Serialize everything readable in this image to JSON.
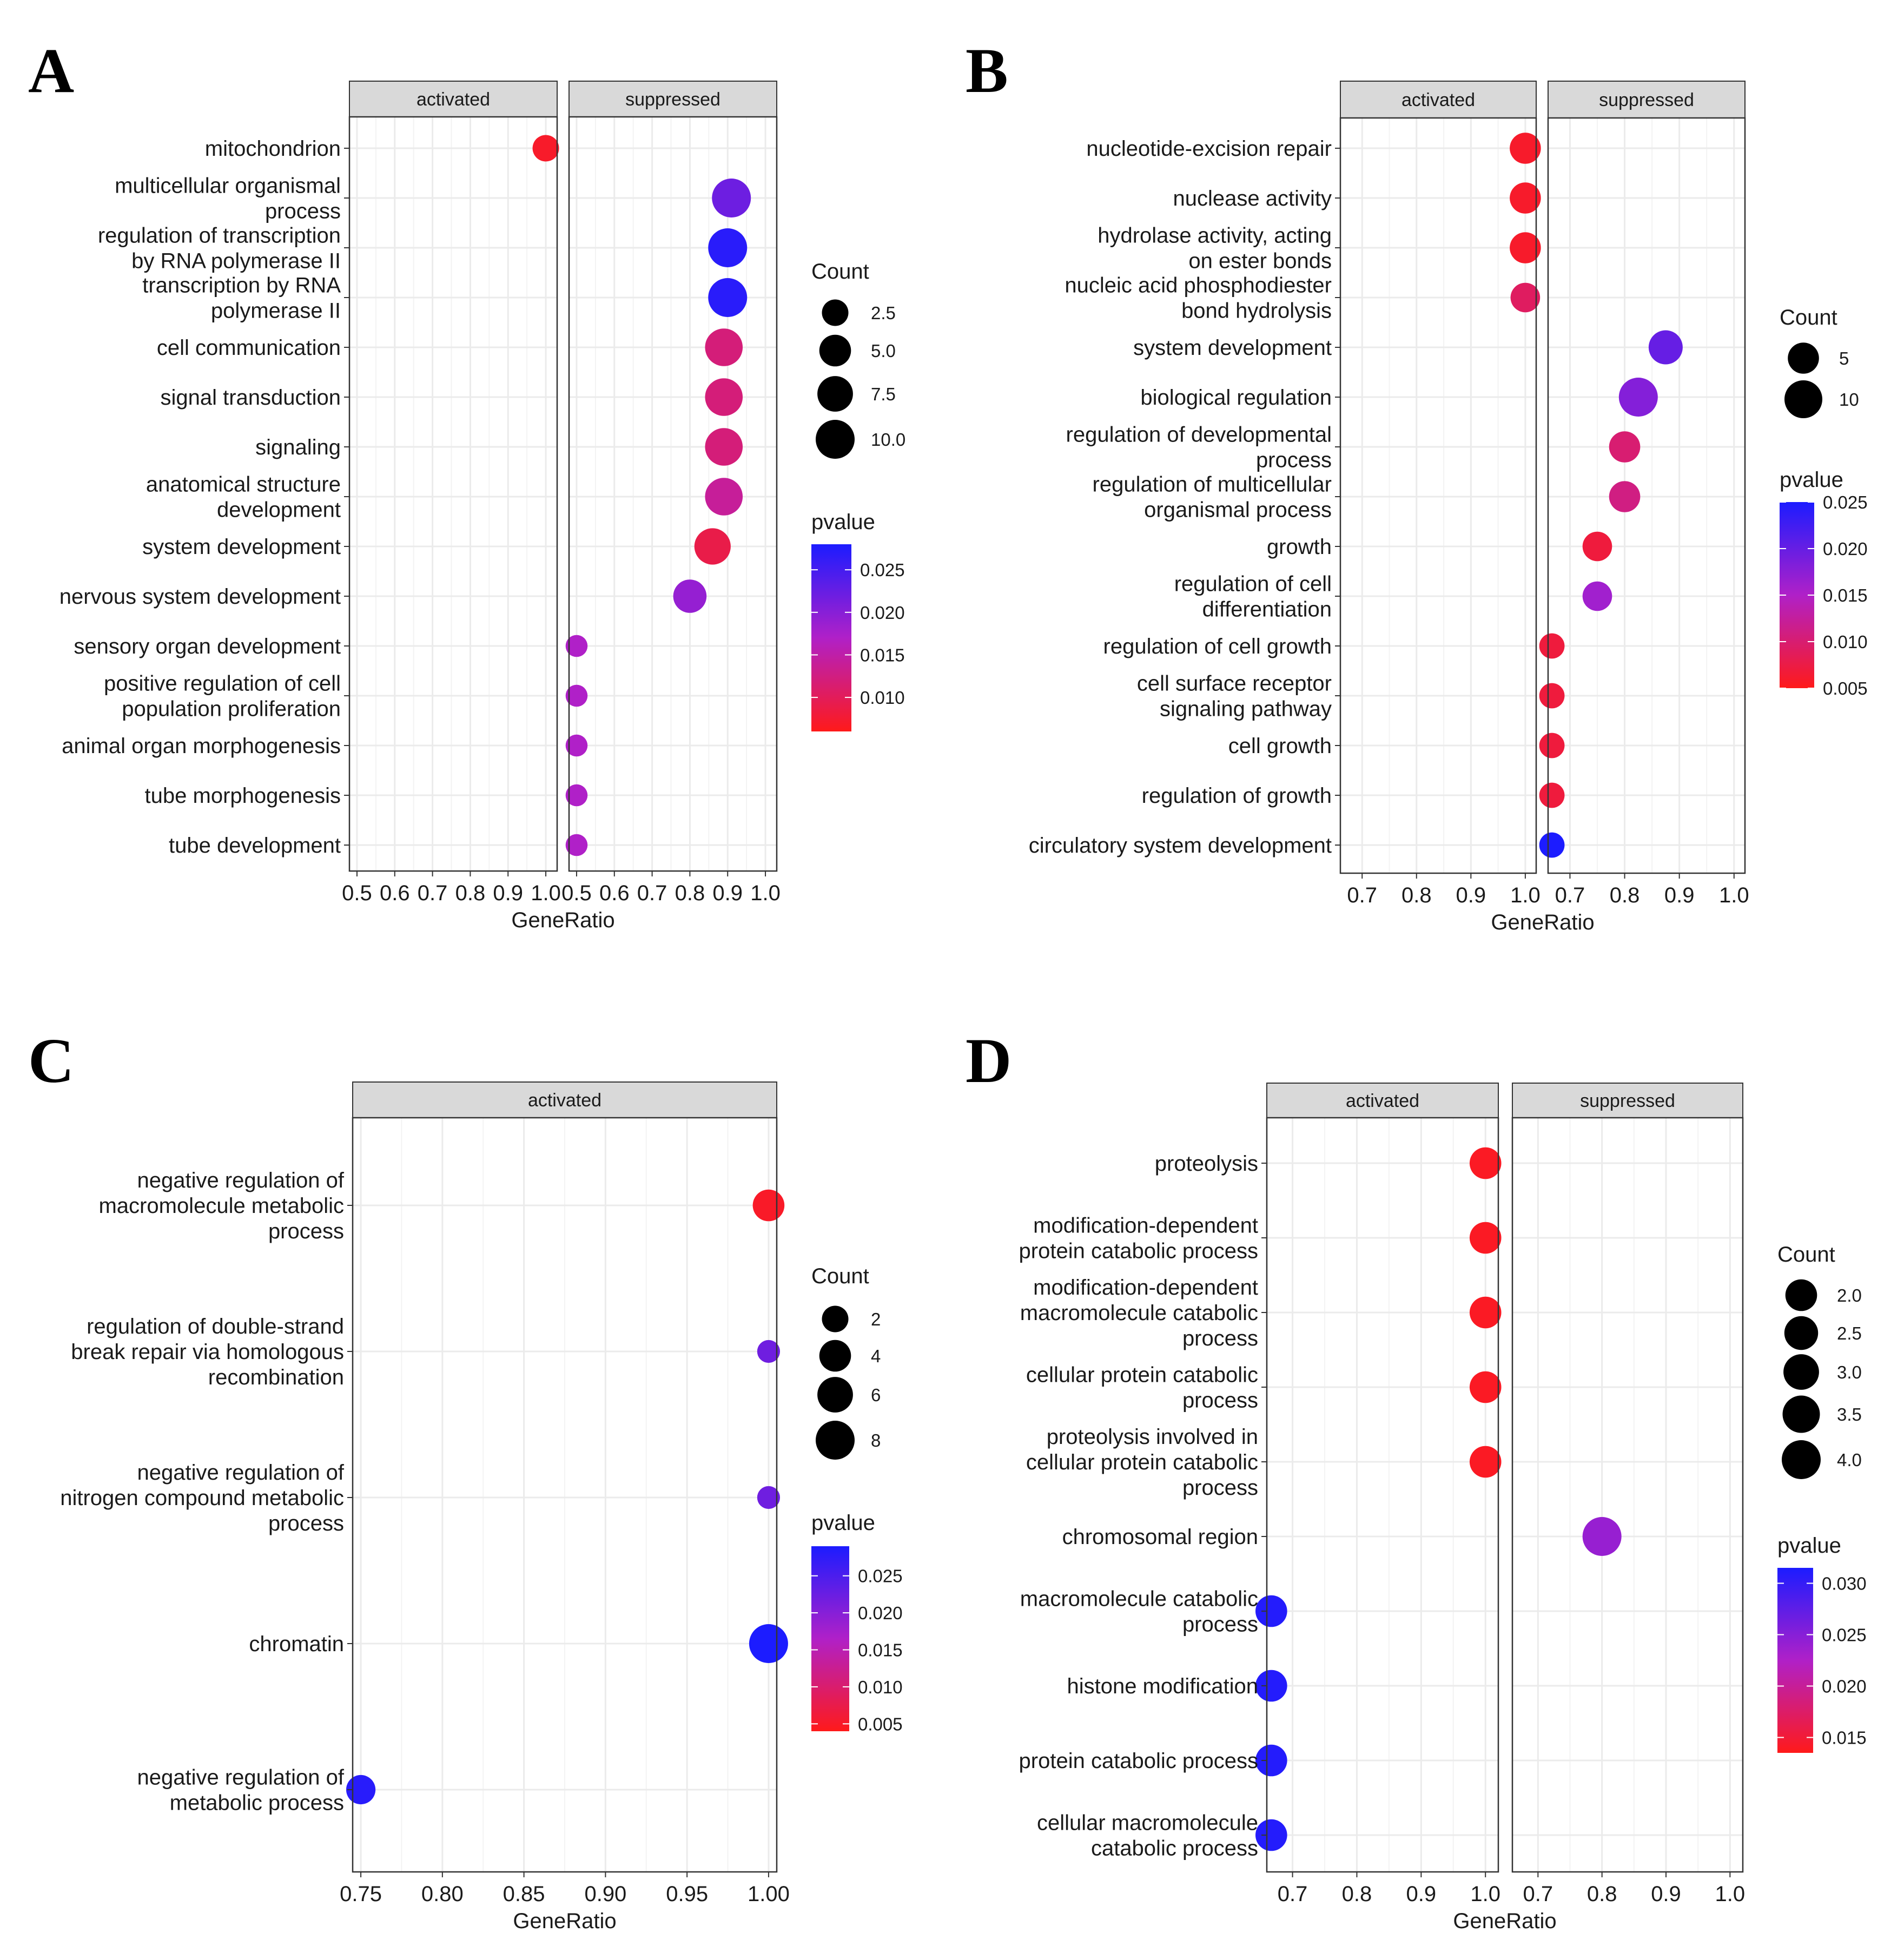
{
  "figure": {
    "colors": {
      "low_p": "#ff1a1a",
      "mid_p": "#b020c8",
      "high_p": "#1c1cff",
      "strip_fill": "#d9d9d9",
      "grid": "#ebebeb"
    }
  },
  "chart_data": [
    {
      "letter": "A",
      "type": "scatter",
      "facets": [
        "activated",
        "suppressed"
      ],
      "xlabel": "GeneRatio",
      "xlim": [
        0.48,
        1.03
      ],
      "xticks": [
        0.5,
        0.6,
        0.7,
        0.8,
        0.9,
        1.0
      ],
      "xtick_labels": [
        "0.5",
        "0.6",
        "0.7",
        "0.8",
        "0.9",
        "1.0"
      ],
      "terms": [
        {
          "lines": [
            "mitochondrion"
          ]
        },
        {
          "lines": [
            "multicellular organismal",
            "process"
          ]
        },
        {
          "lines": [
            "regulation of transcription",
            "by RNA polymerase II"
          ]
        },
        {
          "lines": [
            "transcription by RNA",
            "polymerase II"
          ]
        },
        {
          "lines": [
            "cell communication"
          ]
        },
        {
          "lines": [
            "signal transduction"
          ]
        },
        {
          "lines": [
            "signaling"
          ]
        },
        {
          "lines": [
            "anatomical structure",
            "development"
          ]
        },
        {
          "lines": [
            "system development"
          ]
        },
        {
          "lines": [
            "nervous system development"
          ]
        },
        {
          "lines": [
            "sensory organ development"
          ]
        },
        {
          "lines": [
            "positive regulation of cell",
            "population proliferation"
          ]
        },
        {
          "lines": [
            "animal organ morphogenesis"
          ]
        },
        {
          "lines": [
            "tube morphogenesis"
          ]
        },
        {
          "lines": [
            "tube development"
          ]
        }
      ],
      "points": [
        {
          "term": 0,
          "facet": 0,
          "gene_ratio": 1.0,
          "count": 2.5,
          "pvalue": 0.007
        },
        {
          "term": 1,
          "facet": 1,
          "gene_ratio": 0.91,
          "count": 10,
          "pvalue": 0.022
        },
        {
          "term": 2,
          "facet": 1,
          "gene_ratio": 0.9,
          "count": 10,
          "pvalue": 0.027
        },
        {
          "term": 3,
          "facet": 1,
          "gene_ratio": 0.9,
          "count": 10,
          "pvalue": 0.027
        },
        {
          "term": 4,
          "facet": 1,
          "gene_ratio": 0.89,
          "count": 9,
          "pvalue": 0.012
        },
        {
          "term": 5,
          "facet": 1,
          "gene_ratio": 0.89,
          "count": 9,
          "pvalue": 0.012
        },
        {
          "term": 6,
          "facet": 1,
          "gene_ratio": 0.89,
          "count": 9,
          "pvalue": 0.012
        },
        {
          "term": 7,
          "facet": 1,
          "gene_ratio": 0.89,
          "count": 9,
          "pvalue": 0.014
        },
        {
          "term": 8,
          "facet": 1,
          "gene_ratio": 0.86,
          "count": 8,
          "pvalue": 0.009
        },
        {
          "term": 9,
          "facet": 1,
          "gene_ratio": 0.8,
          "count": 6,
          "pvalue": 0.019
        },
        {
          "term": 10,
          "facet": 1,
          "gene_ratio": 0.5,
          "count": 1,
          "pvalue": 0.017
        },
        {
          "term": 11,
          "facet": 1,
          "gene_ratio": 0.5,
          "count": 1,
          "pvalue": 0.017
        },
        {
          "term": 12,
          "facet": 1,
          "gene_ratio": 0.5,
          "count": 1,
          "pvalue": 0.017
        },
        {
          "term": 13,
          "facet": 1,
          "gene_ratio": 0.5,
          "count": 1,
          "pvalue": 0.017
        },
        {
          "term": 14,
          "facet": 1,
          "gene_ratio": 0.5,
          "count": 1,
          "pvalue": 0.017
        }
      ],
      "count_legend": {
        "title": "Count",
        "values": [
          2.5,
          5.0,
          7.5,
          10.0
        ],
        "labels": [
          "2.5",
          "5.0",
          "7.5",
          "10.0"
        ],
        "max": 10
      },
      "pvalue_legend": {
        "title": "pvalue",
        "range": [
          0.006,
          0.028
        ],
        "ticks": [
          0.025,
          0.02,
          0.015,
          0.01
        ],
        "labels": [
          "0.025",
          "0.020",
          "0.015",
          "0.010"
        ]
      }
    },
    {
      "letter": "B",
      "type": "scatter",
      "facets": [
        "activated",
        "suppressed"
      ],
      "xlabel": "GeneRatio",
      "xlim": [
        0.66,
        1.02
      ],
      "xticks": [
        0.7,
        0.8,
        0.9,
        1.0
      ],
      "xtick_labels": [
        "0.7",
        "0.8",
        "0.9",
        "1.0"
      ],
      "terms": [
        {
          "lines": [
            "nucleotide-excision repair"
          ]
        },
        {
          "lines": [
            "nuclease activity"
          ]
        },
        {
          "lines": [
            "hydrolase activity, acting",
            "on ester bonds"
          ]
        },
        {
          "lines": [
            "nucleic acid phosphodiester",
            "bond hydrolysis"
          ]
        },
        {
          "lines": [
            "system development"
          ]
        },
        {
          "lines": [
            "biological regulation"
          ]
        },
        {
          "lines": [
            "regulation of developmental",
            "process"
          ]
        },
        {
          "lines": [
            "regulation of multicellular",
            "organismal process"
          ]
        },
        {
          "lines": [
            "growth"
          ]
        },
        {
          "lines": [
            "regulation of cell",
            "differentiation"
          ]
        },
        {
          "lines": [
            "regulation of cell growth"
          ]
        },
        {
          "lines": [
            "cell surface receptor",
            "signaling pathway"
          ]
        },
        {
          "lines": [
            "cell growth"
          ]
        },
        {
          "lines": [
            "regulation of growth"
          ]
        },
        {
          "lines": [
            "circulatory system development"
          ]
        }
      ],
      "points": [
        {
          "term": 0,
          "facet": 0,
          "gene_ratio": 1.0,
          "count": 5,
          "pvalue": 0.006
        },
        {
          "term": 1,
          "facet": 0,
          "gene_ratio": 1.0,
          "count": 5,
          "pvalue": 0.006
        },
        {
          "term": 2,
          "facet": 0,
          "gene_ratio": 1.0,
          "count": 5,
          "pvalue": 0.006
        },
        {
          "term": 3,
          "facet": 0,
          "gene_ratio": 1.0,
          "count": 4,
          "pvalue": 0.009
        },
        {
          "term": 4,
          "facet": 1,
          "gene_ratio": 0.875,
          "count": 7,
          "pvalue": 0.02
        },
        {
          "term": 5,
          "facet": 1,
          "gene_ratio": 0.825,
          "count": 11,
          "pvalue": 0.018
        },
        {
          "term": 6,
          "facet": 1,
          "gene_ratio": 0.8,
          "count": 5,
          "pvalue": 0.01
        },
        {
          "term": 7,
          "facet": 1,
          "gene_ratio": 0.8,
          "count": 5,
          "pvalue": 0.011
        },
        {
          "term": 8,
          "facet": 1,
          "gene_ratio": 0.75,
          "count": 4,
          "pvalue": 0.007
        },
        {
          "term": 9,
          "facet": 1,
          "gene_ratio": 0.75,
          "count": 4,
          "pvalue": 0.016
        },
        {
          "term": 10,
          "facet": 1,
          "gene_ratio": 0.667,
          "count": 2,
          "pvalue": 0.007
        },
        {
          "term": 11,
          "facet": 1,
          "gene_ratio": 0.667,
          "count": 2,
          "pvalue": 0.007
        },
        {
          "term": 12,
          "facet": 1,
          "gene_ratio": 0.667,
          "count": 2,
          "pvalue": 0.007
        },
        {
          "term": 13,
          "facet": 1,
          "gene_ratio": 0.667,
          "count": 2,
          "pvalue": 0.007
        },
        {
          "term": 14,
          "facet": 1,
          "gene_ratio": 0.667,
          "count": 2,
          "pvalue": 0.025
        }
      ],
      "count_legend": {
        "title": "Count",
        "values": [
          5,
          10
        ],
        "labels": [
          "5",
          "10"
        ],
        "max": 11
      },
      "pvalue_legend": {
        "title": "pvalue",
        "range": [
          0.005,
          0.025
        ],
        "ticks": [
          0.025,
          0.02,
          0.015,
          0.01,
          0.005
        ],
        "labels": [
          "0.025",
          "0.020",
          "0.015",
          "0.010",
          "0.005"
        ]
      }
    },
    {
      "letter": "C",
      "type": "scatter",
      "facets": [
        "activated"
      ],
      "xlabel": "GeneRatio",
      "xlim": [
        0.745,
        1.005
      ],
      "xticks": [
        0.75,
        0.8,
        0.85,
        0.9,
        0.95,
        1.0
      ],
      "xtick_labels": [
        "0.75",
        "0.80",
        "0.85",
        "0.90",
        "0.95",
        "1.00"
      ],
      "terms": [
        {
          "lines": [
            "negative regulation of",
            "macromolecule metabolic",
            "process"
          ]
        },
        {
          "lines": [
            "regulation of double-strand",
            "break repair via homologous",
            "recombination"
          ]
        },
        {
          "lines": [
            "negative regulation of",
            "nitrogen compound metabolic",
            "process"
          ]
        },
        {
          "lines": [
            "chromatin"
          ]
        },
        {
          "lines": [
            "negative regulation of",
            "metabolic process"
          ]
        }
      ],
      "points": [
        {
          "term": 0,
          "facet": 0,
          "gene_ratio": 1.0,
          "count": 4,
          "pvalue": 0.005
        },
        {
          "term": 1,
          "facet": 0,
          "gene_ratio": 1.0,
          "count": 1,
          "pvalue": 0.022
        },
        {
          "term": 2,
          "facet": 0,
          "gene_ratio": 1.0,
          "count": 1,
          "pvalue": 0.022
        },
        {
          "term": 3,
          "facet": 0,
          "gene_ratio": 1.0,
          "count": 8,
          "pvalue": 0.029
        },
        {
          "term": 4,
          "facet": 0,
          "gene_ratio": 0.75,
          "count": 3,
          "pvalue": 0.028
        }
      ],
      "count_legend": {
        "title": "Count",
        "values": [
          2,
          4,
          6,
          8
        ],
        "labels": [
          "2",
          "4",
          "6",
          "8"
        ],
        "max": 8
      },
      "pvalue_legend": {
        "title": "pvalue",
        "range": [
          0.004,
          0.029
        ],
        "ticks": [
          0.025,
          0.02,
          0.015,
          0.01,
          0.005
        ],
        "labels": [
          "0.025",
          "0.020",
          "0.015",
          "0.010",
          "0.005"
        ]
      }
    },
    {
      "letter": "D",
      "type": "scatter",
      "facets": [
        "activated",
        "suppressed"
      ],
      "xlabel": "GeneRatio",
      "xlim": [
        0.66,
        1.02
      ],
      "xticks": [
        0.7,
        0.8,
        0.9,
        1.0
      ],
      "xtick_labels": [
        "0.7",
        "0.8",
        "0.9",
        "1.0"
      ],
      "terms": [
        {
          "lines": [
            "proteolysis"
          ]
        },
        {
          "lines": [
            "modification-dependent",
            "protein catabolic process"
          ]
        },
        {
          "lines": [
            "modification-dependent",
            "macromolecule catabolic",
            "process"
          ]
        },
        {
          "lines": [
            "cellular protein catabolic",
            "process"
          ]
        },
        {
          "lines": [
            "proteolysis involved in",
            "cellular protein catabolic",
            "process"
          ]
        },
        {
          "lines": [
            "chromosomal region"
          ]
        },
        {
          "lines": [
            "macromolecule catabolic",
            "process"
          ]
        },
        {
          "lines": [
            "histone modification"
          ]
        },
        {
          "lines": [
            "protein catabolic process"
          ]
        },
        {
          "lines": [
            "cellular macromolecule",
            "catabolic process"
          ]
        }
      ],
      "points": [
        {
          "term": 0,
          "facet": 0,
          "gene_ratio": 1.0,
          "count": 2,
          "pvalue": 0.014
        },
        {
          "term": 1,
          "facet": 0,
          "gene_ratio": 1.0,
          "count": 2,
          "pvalue": 0.014
        },
        {
          "term": 2,
          "facet": 0,
          "gene_ratio": 1.0,
          "count": 2,
          "pvalue": 0.014
        },
        {
          "term": 3,
          "facet": 0,
          "gene_ratio": 1.0,
          "count": 2,
          "pvalue": 0.014
        },
        {
          "term": 4,
          "facet": 0,
          "gene_ratio": 1.0,
          "count": 2,
          "pvalue": 0.014
        },
        {
          "term": 5,
          "facet": 1,
          "gene_ratio": 0.8,
          "count": 4,
          "pvalue": 0.024
        },
        {
          "term": 6,
          "facet": 0,
          "gene_ratio": 0.667,
          "count": 2,
          "pvalue": 0.031
        },
        {
          "term": 7,
          "facet": 0,
          "gene_ratio": 0.667,
          "count": 2,
          "pvalue": 0.031
        },
        {
          "term": 8,
          "facet": 0,
          "gene_ratio": 0.667,
          "count": 2,
          "pvalue": 0.031
        },
        {
          "term": 9,
          "facet": 0,
          "gene_ratio": 0.667,
          "count": 2,
          "pvalue": 0.031
        }
      ],
      "count_legend": {
        "title": "Count",
        "values": [
          2.0,
          2.5,
          3.0,
          3.5,
          4.0
        ],
        "labels": [
          "2.0",
          "2.5",
          "3.0",
          "3.5",
          "4.0"
        ],
        "max": 4
      },
      "pvalue_legend": {
        "title": "pvalue",
        "range": [
          0.0135,
          0.0315
        ],
        "ticks": [
          0.03,
          0.025,
          0.02,
          0.015
        ],
        "labels": [
          "0.030",
          "0.025",
          "0.020",
          "0.015"
        ]
      }
    }
  ]
}
